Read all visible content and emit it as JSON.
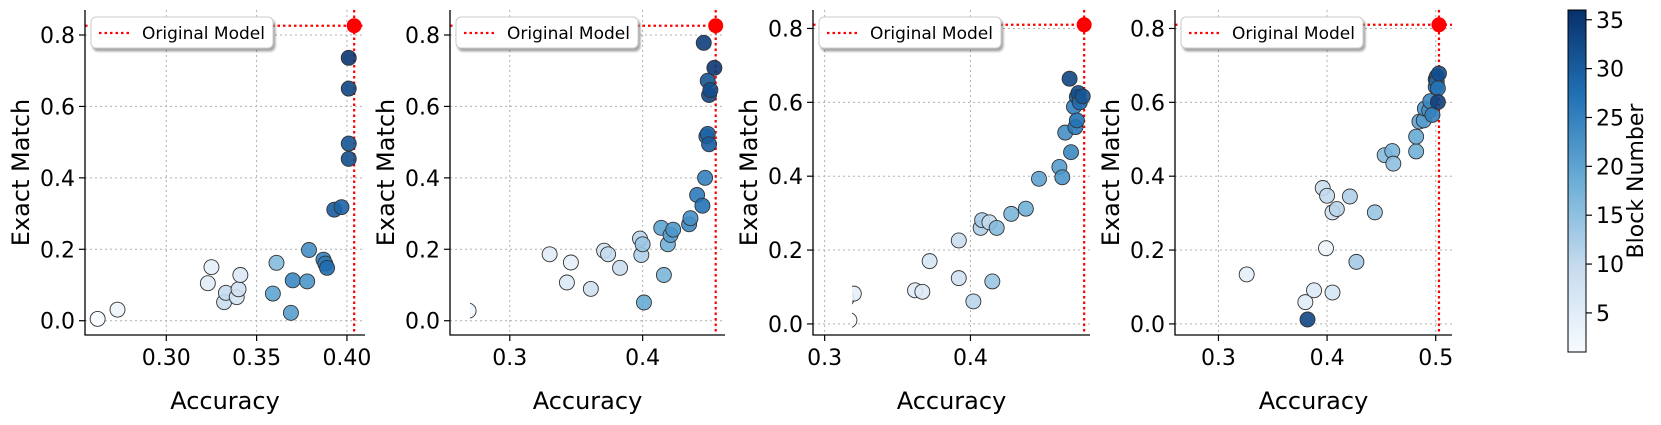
{
  "figure": {
    "colorbar": {
      "label": "Block Number",
      "min": 1,
      "max": 36,
      "ticks": [
        5,
        10,
        15,
        20,
        25,
        30,
        35
      ],
      "colors": [
        "#f7fbff",
        "#08306b"
      ]
    },
    "reference_color": "#ff0000",
    "marker_edge_color": "#333333"
  },
  "chart_data": [
    {
      "type": "scatter",
      "title": "",
      "xlabel": "Accuracy",
      "ylabel": "Exact Match",
      "xlim": [
        0.255,
        0.41
      ],
      "ylim": [
        -0.04,
        0.87
      ],
      "xticks": [
        0.3,
        0.35,
        0.4
      ],
      "xtick_labels": [
        "0.30",
        "0.35",
        "0.40"
      ],
      "yticks": [
        0.0,
        0.2,
        0.4,
        0.6,
        0.8
      ],
      "ytick_labels": [
        "0.0",
        "0.2",
        "0.4",
        "0.6",
        "0.8"
      ],
      "legend": "Original Model",
      "reference": {
        "x": 0.404,
        "y": 0.826
      },
      "points": [
        {
          "x": 0.262,
          "y": 0.005,
          "block": 1
        },
        {
          "x": 0.273,
          "y": 0.031,
          "block": 3
        },
        {
          "x": 0.323,
          "y": 0.105,
          "block": 5
        },
        {
          "x": 0.325,
          "y": 0.15,
          "block": 4
        },
        {
          "x": 0.332,
          "y": 0.052,
          "block": 9
        },
        {
          "x": 0.333,
          "y": 0.078,
          "block": 10
        },
        {
          "x": 0.339,
          "y": 0.066,
          "block": 7
        },
        {
          "x": 0.34,
          "y": 0.088,
          "block": 8
        },
        {
          "x": 0.341,
          "y": 0.128,
          "block": 6
        },
        {
          "x": 0.359,
          "y": 0.076,
          "block": 20
        },
        {
          "x": 0.361,
          "y": 0.162,
          "block": 16
        },
        {
          "x": 0.369,
          "y": 0.022,
          "block": 21
        },
        {
          "x": 0.37,
          "y": 0.113,
          "block": 24
        },
        {
          "x": 0.378,
          "y": 0.11,
          "block": 22
        },
        {
          "x": 0.379,
          "y": 0.198,
          "block": 23
        },
        {
          "x": 0.387,
          "y": 0.171,
          "block": 25
        },
        {
          "x": 0.388,
          "y": 0.16,
          "block": 26
        },
        {
          "x": 0.389,
          "y": 0.148,
          "block": 28
        },
        {
          "x": 0.393,
          "y": 0.311,
          "block": 30
        },
        {
          "x": 0.397,
          "y": 0.318,
          "block": 29
        },
        {
          "x": 0.401,
          "y": 0.453,
          "block": 32
        },
        {
          "x": 0.401,
          "y": 0.496,
          "block": 31
        },
        {
          "x": 0.401,
          "y": 0.65,
          "block": 33
        },
        {
          "x": 0.401,
          "y": 0.736,
          "block": 35
        }
      ]
    },
    {
      "type": "scatter",
      "title": "",
      "xlabel": "Accuracy",
      "ylabel": "Exact Match",
      "xlim": [
        0.255,
        0.462
      ],
      "ylim": [
        -0.04,
        0.87
      ],
      "xticks": [
        0.3,
        0.4
      ],
      "xtick_labels": [
        "0.3",
        "0.4"
      ],
      "yticks": [
        0.0,
        0.2,
        0.4,
        0.6,
        0.8
      ],
      "ytick_labels": [
        "0.0",
        "0.2",
        "0.4",
        "0.6",
        "0.8"
      ],
      "legend": "Original Model",
      "reference": {
        "x": 0.455,
        "y": 0.826
      },
      "points": [
        {
          "x": 0.26,
          "y": 0.005,
          "block": 1
        },
        {
          "x": 0.269,
          "y": 0.028,
          "block": 2
        },
        {
          "x": 0.33,
          "y": 0.186,
          "block": 5
        },
        {
          "x": 0.343,
          "y": 0.107,
          "block": 6
        },
        {
          "x": 0.346,
          "y": 0.163,
          "block": 4
        },
        {
          "x": 0.361,
          "y": 0.089,
          "block": 8
        },
        {
          "x": 0.371,
          "y": 0.196,
          "block": 7
        },
        {
          "x": 0.374,
          "y": 0.186,
          "block": 10
        },
        {
          "x": 0.383,
          "y": 0.148,
          "block": 9
        },
        {
          "x": 0.398,
          "y": 0.23,
          "block": 11
        },
        {
          "x": 0.399,
          "y": 0.184,
          "block": 12
        },
        {
          "x": 0.4,
          "y": 0.214,
          "block": 14
        },
        {
          "x": 0.401,
          "y": 0.051,
          "block": 19
        },
        {
          "x": 0.414,
          "y": 0.26,
          "block": 20
        },
        {
          "x": 0.416,
          "y": 0.128,
          "block": 17
        },
        {
          "x": 0.419,
          "y": 0.214,
          "block": 18
        },
        {
          "x": 0.421,
          "y": 0.24,
          "block": 21
        },
        {
          "x": 0.423,
          "y": 0.255,
          "block": 22
        },
        {
          "x": 0.435,
          "y": 0.27,
          "block": 24
        },
        {
          "x": 0.436,
          "y": 0.287,
          "block": 23
        },
        {
          "x": 0.441,
          "y": 0.352,
          "block": 26
        },
        {
          "x": 0.445,
          "y": 0.322,
          "block": 27
        },
        {
          "x": 0.447,
          "y": 0.4,
          "block": 25
        },
        {
          "x": 0.448,
          "y": 0.516,
          "block": 28
        },
        {
          "x": 0.449,
          "y": 0.523,
          "block": 29
        },
        {
          "x": 0.45,
          "y": 0.494,
          "block": 30
        },
        {
          "x": 0.449,
          "y": 0.672,
          "block": 31
        },
        {
          "x": 0.45,
          "y": 0.632,
          "block": 33
        },
        {
          "x": 0.451,
          "y": 0.646,
          "block": 32
        },
        {
          "x": 0.446,
          "y": 0.778,
          "block": 34
        },
        {
          "x": 0.454,
          "y": 0.708,
          "block": 35
        }
      ]
    },
    {
      "type": "scatter",
      "title": "",
      "xlabel": "Accuracy",
      "ylabel": "Exact Match",
      "xlim": [
        0.292,
        0.482
      ],
      "ylim": [
        -0.03,
        0.85
      ],
      "xticks": [
        0.3,
        0.4
      ],
      "xtick_labels": [
        "0.3",
        "0.4"
      ],
      "yticks": [
        0.0,
        0.2,
        0.4,
        0.6,
        0.8
      ],
      "ytick_labels": [
        "0.0",
        "0.2",
        "0.4",
        "0.6",
        "0.8"
      ],
      "legend": "Original Model",
      "reference": {
        "x": 0.478,
        "y": 0.81
      },
      "points": [
        {
          "x": 0.298,
          "y": 0.034,
          "block": 2
        },
        {
          "x": 0.315,
          "y": 0.068,
          "block": 3
        },
        {
          "x": 0.317,
          "y": 0.01,
          "block": 1
        },
        {
          "x": 0.32,
          "y": 0.082,
          "block": 4
        },
        {
          "x": 0.362,
          "y": 0.091,
          "block": 5
        },
        {
          "x": 0.367,
          "y": 0.087,
          "block": 6
        },
        {
          "x": 0.372,
          "y": 0.17,
          "block": 7
        },
        {
          "x": 0.392,
          "y": 0.124,
          "block": 8
        },
        {
          "x": 0.392,
          "y": 0.226,
          "block": 9
        },
        {
          "x": 0.402,
          "y": 0.061,
          "block": 11
        },
        {
          "x": 0.407,
          "y": 0.26,
          "block": 12
        },
        {
          "x": 0.408,
          "y": 0.281,
          "block": 13
        },
        {
          "x": 0.413,
          "y": 0.275,
          "block": 10
        },
        {
          "x": 0.415,
          "y": 0.115,
          "block": 14
        },
        {
          "x": 0.418,
          "y": 0.26,
          "block": 16
        },
        {
          "x": 0.428,
          "y": 0.298,
          "block": 17
        },
        {
          "x": 0.438,
          "y": 0.312,
          "block": 18
        },
        {
          "x": 0.447,
          "y": 0.393,
          "block": 20
        },
        {
          "x": 0.461,
          "y": 0.425,
          "block": 21
        },
        {
          "x": 0.463,
          "y": 0.397,
          "block": 22
        },
        {
          "x": 0.465,
          "y": 0.518,
          "block": 23
        },
        {
          "x": 0.468,
          "y": 0.664,
          "block": 33
        },
        {
          "x": 0.469,
          "y": 0.465,
          "block": 24
        },
        {
          "x": 0.471,
          "y": 0.588,
          "block": 25
        },
        {
          "x": 0.472,
          "y": 0.533,
          "block": 26
        },
        {
          "x": 0.473,
          "y": 0.551,
          "block": 27
        },
        {
          "x": 0.473,
          "y": 0.615,
          "block": 30
        },
        {
          "x": 0.474,
          "y": 0.625,
          "block": 32
        },
        {
          "x": 0.475,
          "y": 0.6,
          "block": 28
        },
        {
          "x": 0.477,
          "y": 0.616,
          "block": 31
        }
      ]
    },
    {
      "type": "scatter",
      "title": "",
      "xlabel": "Accuracy",
      "ylabel": "Exact Match",
      "xlim": [
        0.26,
        0.515
      ],
      "ylim": [
        -0.03,
        0.85
      ],
      "xticks": [
        0.3,
        0.4,
        0.5
      ],
      "xtick_labels": [
        "0.3",
        "0.4",
        "0.5"
      ],
      "yticks": [
        0.0,
        0.2,
        0.4,
        0.6,
        0.8
      ],
      "ytick_labels": [
        "0.0",
        "0.2",
        "0.4",
        "0.6",
        "0.8"
      ],
      "legend": "Original Model",
      "reference": {
        "x": 0.503,
        "y": 0.81
      },
      "points": [
        {
          "x": 0.268,
          "y": 0.01,
          "block": 1
        },
        {
          "x": 0.272,
          "y": 0.005,
          "block": 2
        },
        {
          "x": 0.326,
          "y": 0.134,
          "block": 4
        },
        {
          "x": 0.38,
          "y": 0.059,
          "block": 5
        },
        {
          "x": 0.382,
          "y": 0.012,
          "block": 33
        },
        {
          "x": 0.388,
          "y": 0.091,
          "block": 6
        },
        {
          "x": 0.396,
          "y": 0.368,
          "block": 9
        },
        {
          "x": 0.399,
          "y": 0.205,
          "block": 3
        },
        {
          "x": 0.4,
          "y": 0.347,
          "block": 10
        },
        {
          "x": 0.405,
          "y": 0.302,
          "block": 8
        },
        {
          "x": 0.405,
          "y": 0.085,
          "block": 7
        },
        {
          "x": 0.409,
          "y": 0.311,
          "block": 11
        },
        {
          "x": 0.421,
          "y": 0.345,
          "block": 12
        },
        {
          "x": 0.427,
          "y": 0.168,
          "block": 13
        },
        {
          "x": 0.444,
          "y": 0.302,
          "block": 14
        },
        {
          "x": 0.453,
          "y": 0.457,
          "block": 16
        },
        {
          "x": 0.46,
          "y": 0.468,
          "block": 17
        },
        {
          "x": 0.461,
          "y": 0.434,
          "block": 15
        },
        {
          "x": 0.482,
          "y": 0.467,
          "block": 18
        },
        {
          "x": 0.482,
          "y": 0.507,
          "block": 19
        },
        {
          "x": 0.485,
          "y": 0.548,
          "block": 20
        },
        {
          "x": 0.489,
          "y": 0.551,
          "block": 21
        },
        {
          "x": 0.49,
          "y": 0.583,
          "block": 22
        },
        {
          "x": 0.494,
          "y": 0.578,
          "block": 23
        },
        {
          "x": 0.495,
          "y": 0.603,
          "block": 24
        },
        {
          "x": 0.497,
          "y": 0.566,
          "block": 25
        },
        {
          "x": 0.5,
          "y": 0.642,
          "block": 26
        },
        {
          "x": 0.5,
          "y": 0.662,
          "block": 30
        },
        {
          "x": 0.501,
          "y": 0.67,
          "block": 31
        },
        {
          "x": 0.501,
          "y": 0.655,
          "block": 28
        },
        {
          "x": 0.502,
          "y": 0.638,
          "block": 27
        },
        {
          "x": 0.503,
          "y": 0.678,
          "block": 32
        },
        {
          "x": 0.502,
          "y": 0.601,
          "block": 34
        }
      ]
    }
  ]
}
